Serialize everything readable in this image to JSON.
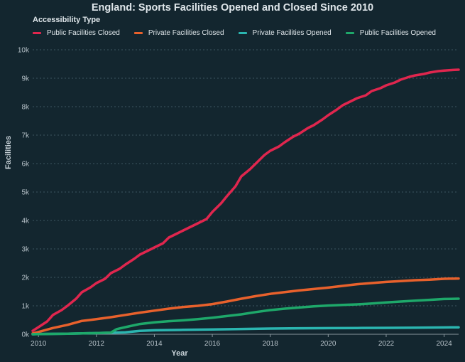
{
  "chart_data": {
    "type": "line",
    "title": "England: Sports Facilities Opened and Closed Since 2010",
    "legend_title": "Accessibility Type",
    "legend_position": "top-left",
    "xlabel": "Year",
    "ylabel": "Facilities",
    "xlim": [
      2009.8,
      2024.5
    ],
    "ylim": [
      0,
      10000
    ],
    "x_ticks": [
      2010,
      2012,
      2014,
      2016,
      2018,
      2020,
      2022,
      2024
    ],
    "y_ticks": [
      0,
      1000,
      2000,
      3000,
      4000,
      5000,
      6000,
      7000,
      8000,
      9000,
      10000
    ],
    "y_tick_labels": [
      "0k",
      "1k",
      "2k",
      "3k",
      "4k",
      "5k",
      "6k",
      "7k",
      "8k",
      "9k",
      "10k"
    ],
    "grid": "horizontal-dashed",
    "series": [
      {
        "name": "Public Facilities Closed",
        "color": "#e0264e",
        "x": [
          2009.8,
          2010.0,
          2010.3,
          2010.5,
          2010.8,
          2011.0,
          2011.3,
          2011.5,
          2011.8,
          2012.0,
          2012.3,
          2012.5,
          2012.8,
          2013.0,
          2013.3,
          2013.5,
          2013.8,
          2014.0,
          2014.3,
          2014.5,
          2014.8,
          2015.0,
          2015.3,
          2015.5,
          2015.8,
          2016.0,
          2016.3,
          2016.5,
          2016.8,
          2017.0,
          2017.3,
          2017.5,
          2017.8,
          2018.0,
          2018.3,
          2018.5,
          2018.8,
          2019.0,
          2019.3,
          2019.5,
          2019.8,
          2020.0,
          2020.3,
          2020.5,
          2020.8,
          2021.0,
          2021.3,
          2021.5,
          2021.8,
          2022.0,
          2022.3,
          2022.5,
          2022.8,
          2023.0,
          2023.3,
          2023.5,
          2023.8,
          2024.0,
          2024.3,
          2024.5
        ],
        "values": [
          120,
          250,
          450,
          680,
          850,
          1000,
          1250,
          1480,
          1650,
          1800,
          1950,
          2150,
          2300,
          2450,
          2650,
          2800,
          2950,
          3050,
          3200,
          3400,
          3550,
          3650,
          3800,
          3900,
          4050,
          4300,
          4600,
          4850,
          5200,
          5550,
          5800,
          6000,
          6300,
          6450,
          6600,
          6750,
          6950,
          7050,
          7250,
          7350,
          7550,
          7700,
          7900,
          8050,
          8200,
          8300,
          8400,
          8550,
          8650,
          8750,
          8850,
          8950,
          9050,
          9100,
          9150,
          9200,
          9250,
          9270,
          9290,
          9300
        ]
      },
      {
        "name": "Private Facilities Closed",
        "color": "#e8612c",
        "x": [
          2009.8,
          2010.0,
          2010.5,
          2011.0,
          2011.5,
          2012.0,
          2012.5,
          2013.0,
          2013.5,
          2014.0,
          2014.5,
          2015.0,
          2015.5,
          2016.0,
          2016.5,
          2017.0,
          2017.5,
          2018.0,
          2018.5,
          2019.0,
          2019.5,
          2020.0,
          2020.5,
          2021.0,
          2021.5,
          2022.0,
          2022.5,
          2023.0,
          2023.5,
          2024.0,
          2024.5
        ],
        "values": [
          30,
          80,
          220,
          330,
          470,
          530,
          600,
          680,
          760,
          830,
          900,
          960,
          1000,
          1060,
          1150,
          1250,
          1340,
          1420,
          1480,
          1540,
          1590,
          1640,
          1700,
          1760,
          1800,
          1840,
          1870,
          1900,
          1920,
          1950,
          1960
        ]
      },
      {
        "name": "Private Facilities Opened",
        "color": "#2bb5b0",
        "x": [
          2009.8,
          2010.0,
          2011.0,
          2012.0,
          2013.0,
          2013.5,
          2014.0,
          2015.0,
          2016.0,
          2017.0,
          2018.0,
          2019.0,
          2020.0,
          2021.0,
          2022.0,
          2023.0,
          2024.0,
          2024.5
        ],
        "values": [
          0,
          10,
          20,
          40,
          70,
          120,
          140,
          155,
          170,
          185,
          200,
          210,
          215,
          220,
          225,
          230,
          240,
          245
        ]
      },
      {
        "name": "Public Facilities Opened",
        "color": "#1ea86a",
        "x": [
          2009.8,
          2010.0,
          2011.0,
          2012.0,
          2012.5,
          2012.7,
          2013.0,
          2013.5,
          2014.0,
          2014.5,
          2015.0,
          2015.5,
          2016.0,
          2016.5,
          2017.0,
          2017.5,
          2018.0,
          2018.5,
          2019.0,
          2019.5,
          2020.0,
          2020.5,
          2021.0,
          2021.5,
          2022.0,
          2022.5,
          2023.0,
          2023.5,
          2024.0,
          2024.5
        ],
        "values": [
          0,
          5,
          20,
          40,
          60,
          180,
          250,
          360,
          420,
          460,
          490,
          530,
          580,
          640,
          700,
          780,
          850,
          900,
          940,
          980,
          1010,
          1030,
          1050,
          1080,
          1120,
          1150,
          1180,
          1210,
          1240,
          1250
        ]
      }
    ]
  }
}
